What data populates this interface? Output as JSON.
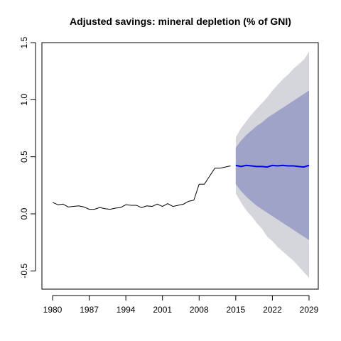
{
  "chart_data": {
    "type": "line",
    "title": "Adjusted savings: mineral depletion (% of GNI)",
    "xlabel": "",
    "ylabel": "",
    "xlim": [
      1979,
      2030
    ],
    "ylim": [
      -0.62,
      1.5
    ],
    "x_ticks": [
      1980,
      1987,
      1994,
      2001,
      2008,
      2015,
      2022,
      2029
    ],
    "y_ticks": [
      -0.5,
      0.0,
      0.5,
      1.0,
      1.5
    ],
    "y_tick_labels": [
      "-0.5",
      "0.0",
      "0.5",
      "1.0",
      "1.5"
    ],
    "grid": false,
    "legend": "none",
    "colors": {
      "history": "#000000",
      "forecast_mean": "#0000ee",
      "band_80": "#a0a3c8",
      "band_95": "#d5d5dc"
    },
    "series": [
      {
        "role": "history",
        "x": [
          1980,
          1981,
          1982,
          1983,
          1984,
          1985,
          1986,
          1987,
          1988,
          1989,
          1990,
          1991,
          1992,
          1993,
          1994,
          1995,
          1996,
          1997,
          1998,
          1999,
          2000,
          2001,
          2002,
          2003,
          2004,
          2005,
          2006,
          2007,
          2008,
          2009,
          2010,
          2011,
          2012,
          2013,
          2014
        ],
        "y": [
          0.1,
          0.08,
          0.085,
          0.06,
          0.065,
          0.07,
          0.06,
          0.04,
          0.04,
          0.055,
          0.045,
          0.04,
          0.05,
          0.055,
          0.08,
          0.075,
          0.075,
          0.055,
          0.07,
          0.065,
          0.085,
          0.065,
          0.09,
          0.065,
          0.075,
          0.085,
          0.11,
          0.12,
          0.26,
          0.26,
          0.33,
          0.4,
          0.4,
          0.41,
          0.42
        ]
      },
      {
        "role": "forecast_mean",
        "x": [
          2015,
          2016,
          2017,
          2018,
          2019,
          2020,
          2021,
          2022,
          2023,
          2024,
          2025,
          2026,
          2027,
          2028,
          2029
        ],
        "y": [
          0.425,
          0.415,
          0.425,
          0.42,
          0.415,
          0.415,
          0.41,
          0.425,
          0.42,
          0.425,
          0.42,
          0.42,
          0.415,
          0.41,
          0.425
        ]
      }
    ],
    "bands": [
      {
        "level": "95%",
        "x": [
          2015,
          2016,
          2017,
          2018,
          2019,
          2020,
          2021,
          2022,
          2023,
          2024,
          2025,
          2026,
          2027,
          2028,
          2029
        ],
        "lower": [
          0.18,
          0.1,
          0.03,
          -0.02,
          -0.08,
          -0.13,
          -0.2,
          -0.24,
          -0.29,
          -0.33,
          -0.37,
          -0.41,
          -0.46,
          -0.51,
          -0.56
        ],
        "upper": [
          0.67,
          0.75,
          0.81,
          0.87,
          0.92,
          0.97,
          1.02,
          1.08,
          1.13,
          1.18,
          1.22,
          1.27,
          1.31,
          1.35,
          1.42
        ]
      },
      {
        "level": "80%",
        "x": [
          2015,
          2016,
          2017,
          2018,
          2019,
          2020,
          2021,
          2022,
          2023,
          2024,
          2025,
          2026,
          2027,
          2028,
          2029
        ],
        "lower": [
          0.26,
          0.2,
          0.15,
          0.11,
          0.07,
          0.04,
          0.01,
          -0.02,
          -0.05,
          -0.08,
          -0.11,
          -0.14,
          -0.17,
          -0.2,
          -0.23
        ],
        "upper": [
          0.58,
          0.64,
          0.69,
          0.73,
          0.77,
          0.8,
          0.84,
          0.87,
          0.9,
          0.93,
          0.96,
          0.99,
          1.02,
          1.05,
          1.08
        ]
      }
    ]
  }
}
